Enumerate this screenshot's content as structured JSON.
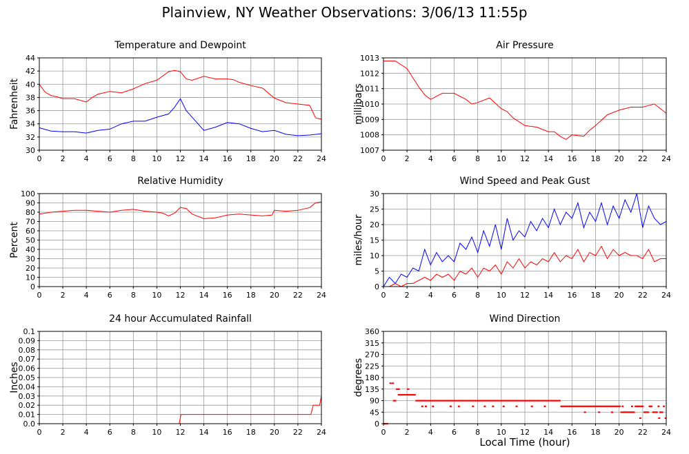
{
  "page": {
    "title": "Plainview, NY Weather Observations: 3/06/13 11:55p",
    "xaxis_caption": "Local Time (hour)"
  },
  "colors": {
    "red": "#ff0000",
    "blue": "#0000ff",
    "grid": "#999999",
    "frame": "#000000"
  },
  "chart_data": [
    {
      "id": "temp",
      "type": "line",
      "title": "Temperature and Dewpoint",
      "ylabel": "Fahrenheit",
      "xlabel": "",
      "xlim": [
        0,
        24
      ],
      "ylim": [
        30,
        44
      ],
      "xticks": [
        0,
        2,
        4,
        6,
        8,
        10,
        12,
        14,
        16,
        18,
        20,
        22,
        24
      ],
      "yticks": [
        30,
        32,
        34,
        36,
        38,
        40,
        42,
        44
      ],
      "grid": true,
      "series": [
        {
          "color": "red",
          "x": [
            0,
            0.5,
            1,
            1.5,
            2,
            3,
            4,
            4.5,
            5,
            6,
            7,
            8,
            9,
            10,
            11,
            11.5,
            12,
            12.5,
            13,
            14,
            15,
            16,
            16.5,
            17,
            18,
            19,
            20,
            21,
            22,
            23,
            23.5,
            24
          ],
          "y": [
            40.0,
            38.8,
            38.3,
            38.1,
            37.8,
            37.8,
            37.3,
            38.0,
            38.5,
            38.9,
            38.7,
            39.3,
            40.1,
            40.6,
            41.9,
            42.1,
            41.9,
            40.8,
            40.6,
            41.2,
            40.8,
            40.8,
            40.7,
            40.3,
            39.8,
            39.4,
            37.9,
            37.2,
            37.0,
            36.8,
            34.9,
            34.7
          ]
        },
        {
          "color": "blue",
          "x": [
            0,
            1,
            2,
            3,
            4,
            5,
            6,
            7,
            8,
            9,
            10,
            11,
            11.5,
            12,
            12.5,
            13,
            14,
            15,
            16,
            16.5,
            17,
            18,
            19,
            20,
            21,
            22,
            23,
            24
          ],
          "y": [
            33.4,
            32.9,
            32.8,
            32.8,
            32.6,
            33.0,
            33.2,
            34.0,
            34.4,
            34.4,
            35.0,
            35.5,
            36.5,
            37.8,
            36.0,
            35.0,
            33.0,
            33.5,
            34.2,
            34.1,
            34.0,
            33.3,
            32.8,
            33.0,
            32.4,
            32.2,
            32.3,
            32.5
          ]
        }
      ]
    },
    {
      "id": "pressure",
      "type": "line",
      "title": "Air Pressure",
      "ylabel": "millibars",
      "xlabel": "",
      "xlim": [
        0,
        24
      ],
      "ylim": [
        1007,
        1013
      ],
      "xticks": [
        0,
        2,
        4,
        6,
        8,
        10,
        12,
        14,
        16,
        18,
        20,
        22,
        24
      ],
      "yticks": [
        1007,
        1008,
        1009,
        1010,
        1011,
        1012,
        1013
      ],
      "grid": true,
      "series": [
        {
          "color": "red",
          "x": [
            0,
            1,
            2,
            2.5,
            3,
            3.5,
            4,
            4.5,
            5,
            6,
            7,
            7.5,
            8,
            9,
            10,
            10.5,
            11,
            12,
            13,
            14,
            14.5,
            15,
            15.5,
            16,
            17,
            17.5,
            18,
            19,
            20,
            21,
            22,
            22.5,
            23,
            24
          ],
          "y": [
            1012.8,
            1012.8,
            1012.3,
            1011.7,
            1011.1,
            1010.6,
            1010.3,
            1010.5,
            1010.7,
            1010.7,
            1010.3,
            1010.0,
            1010.1,
            1010.4,
            1009.7,
            1009.5,
            1009.1,
            1008.6,
            1008.5,
            1008.2,
            1008.2,
            1007.9,
            1007.7,
            1008.0,
            1007.9,
            1008.3,
            1008.6,
            1009.3,
            1009.6,
            1009.8,
            1009.8,
            1009.9,
            1010.0,
            1009.4
          ]
        }
      ]
    },
    {
      "id": "humidity",
      "type": "line",
      "title": "Relative Humidity",
      "ylabel": "Percent",
      "xlabel": "",
      "xlim": [
        0,
        24
      ],
      "ylim": [
        0,
        100
      ],
      "xticks": [
        0,
        2,
        4,
        6,
        8,
        10,
        12,
        14,
        16,
        18,
        20,
        22,
        24
      ],
      "yticks": [
        0,
        10,
        20,
        30,
        40,
        50,
        60,
        70,
        80,
        90,
        100
      ],
      "grid": true,
      "series": [
        {
          "color": "red",
          "x": [
            0,
            1,
            2,
            3,
            4,
            5,
            6,
            7,
            8,
            9,
            10,
            10.5,
            11,
            11.5,
            12,
            12.5,
            13,
            14,
            15,
            16,
            17,
            18,
            19,
            19.8,
            20,
            21,
            22,
            23,
            23.5,
            24
          ],
          "y": [
            78,
            80,
            81,
            82,
            82,
            81,
            80,
            82,
            83,
            81,
            80,
            79,
            76,
            79,
            85,
            84,
            78,
            73,
            74,
            77,
            78,
            77,
            76,
            77,
            82,
            81,
            82,
            85,
            90,
            91
          ]
        }
      ]
    },
    {
      "id": "wind",
      "type": "line",
      "title": "Wind Speed and Peak Gust",
      "ylabel": "miles/hour",
      "xlabel": "",
      "xlim": [
        0,
        24
      ],
      "ylim": [
        0,
        30
      ],
      "xticks": [
        0,
        2,
        4,
        6,
        8,
        10,
        12,
        14,
        16,
        18,
        20,
        22,
        24
      ],
      "yticks": [
        0,
        5,
        10,
        15,
        20,
        25,
        30
      ],
      "grid": true,
      "series": [
        {
          "color": "blue",
          "x": [
            0,
            0.5,
            1,
            1.5,
            2,
            2.5,
            3,
            3.5,
            4,
            4.5,
            5,
            5.5,
            6,
            6.5,
            7,
            7.5,
            8,
            8.5,
            9,
            9.5,
            10,
            10.5,
            11,
            11.5,
            12,
            12.5,
            13,
            13.5,
            14,
            14.5,
            15,
            15.5,
            16,
            16.5,
            17,
            17.5,
            18,
            18.5,
            19,
            19.5,
            20,
            20.5,
            21,
            21.5,
            22,
            22.5,
            23,
            23.5,
            24
          ],
          "y": [
            0,
            3,
            1,
            4,
            3,
            6,
            5,
            12,
            7,
            11,
            8,
            10,
            8,
            14,
            12,
            16,
            11,
            18,
            13,
            20,
            12,
            22,
            15,
            18,
            16,
            21,
            18,
            22,
            19,
            25,
            20,
            24,
            22,
            27,
            19,
            24,
            21,
            27,
            20,
            26,
            22,
            28,
            24,
            30,
            19,
            26,
            22,
            20,
            21
          ]
        },
        {
          "color": "red",
          "x": [
            0,
            0.5,
            1,
            1.5,
            2,
            2.5,
            3,
            3.5,
            4,
            4.5,
            5,
            5.5,
            6,
            6.5,
            7,
            7.5,
            8,
            8.5,
            9,
            9.5,
            10,
            10.5,
            11,
            11.5,
            12,
            12.5,
            13,
            13.5,
            14,
            14.5,
            15,
            15.5,
            16,
            16.5,
            17,
            17.5,
            18,
            18.5,
            19,
            19.5,
            20,
            20.5,
            21,
            21.5,
            22,
            22.5,
            23,
            23.5,
            24
          ],
          "y": [
            0,
            0,
            1,
            0,
            1,
            1,
            2,
            3,
            2,
            4,
            3,
            4,
            2,
            5,
            4,
            6,
            3,
            6,
            5,
            7,
            4,
            8,
            6,
            9,
            6,
            8,
            7,
            9,
            8,
            11,
            8,
            10,
            9,
            12,
            8,
            11,
            10,
            13,
            9,
            12,
            10,
            11,
            10,
            10,
            9,
            12,
            8,
            9,
            9
          ]
        }
      ]
    },
    {
      "id": "rain",
      "type": "line",
      "title": "24 hour Accumulated Rainfall",
      "ylabel": "Inches",
      "xlabel": "",
      "xlim": [
        0,
        24
      ],
      "ylim": [
        0,
        0.1
      ],
      "xticks": [
        0,
        2,
        4,
        6,
        8,
        10,
        12,
        14,
        16,
        18,
        20,
        22,
        24
      ],
      "yticks": [
        0,
        0.01,
        0.02,
        0.03,
        0.04,
        0.05,
        0.06,
        0.07,
        0.08,
        0.09,
        0.1
      ],
      "ytick_labels": [
        "0.0",
        "0.01",
        "0.02",
        "0.03",
        "0.04",
        "0.05",
        "0.06",
        "0.07",
        "0.08",
        "0.09",
        "0.1"
      ],
      "grid": true,
      "series": [
        {
          "color": "red",
          "x": [
            0,
            11.9,
            12.05,
            23.1,
            23.3,
            23.85,
            24
          ],
          "y": [
            0,
            0,
            0.01,
            0.01,
            0.02,
            0.02,
            0.03
          ]
        }
      ]
    },
    {
      "id": "direction",
      "type": "scatter",
      "title": "Wind Direction",
      "ylabel": "degrees",
      "xlabel": "Local Time (hour)",
      "xlim": [
        0,
        24
      ],
      "ylim": [
        0,
        360
      ],
      "xticks": [
        0,
        2,
        4,
        6,
        8,
        10,
        12,
        14,
        16,
        18,
        20,
        22,
        24
      ],
      "yticks": [
        0,
        45,
        90,
        135,
        180,
        225,
        270,
        315,
        360
      ],
      "grid": true,
      "series": [
        {
          "color": "red",
          "x": [
            0.1,
            0.3,
            0.6,
            0.8,
            0.9,
            1.0,
            1.15,
            1.3,
            1.45,
            1.6,
            1.75,
            1.9,
            2.05,
            2.2,
            2.35,
            2.5,
            2.65,
            2.8,
            2.95,
            3.1,
            3.25,
            3.4,
            3.55,
            3.7,
            3.85,
            4.0,
            4.15,
            4.3,
            4.45,
            4.6,
            4.75,
            4.9,
            5.05,
            5.2,
            5.35,
            5.5,
            5.65,
            5.8,
            5.95,
            6.1,
            6.25,
            6.4,
            6.55,
            6.7,
            6.85,
            7.0,
            7.15,
            7.3,
            7.45,
            7.6,
            7.75,
            7.9,
            8.05,
            8.2,
            8.35,
            8.5,
            8.65,
            8.8,
            8.95,
            9.1,
            9.25,
            9.4,
            9.55,
            9.7,
            9.85,
            10.0,
            10.15,
            10.3,
            10.45,
            10.6,
            10.75,
            10.9,
            11.05,
            11.2,
            11.35,
            11.5,
            11.65,
            11.8,
            11.95,
            12.1,
            12.25,
            12.4,
            12.55,
            12.7,
            12.85,
            13.0,
            13.15,
            13.3,
            13.45,
            13.6,
            13.75,
            13.9,
            14.05,
            14.2,
            14.35,
            14.5,
            14.65,
            14.8,
            14.95,
            15.1,
            15.25,
            15.4,
            15.55,
            15.7,
            15.85,
            16.0,
            16.15,
            16.3,
            16.45,
            16.6,
            16.75,
            16.9,
            17.05,
            17.2,
            17.35,
            17.5,
            17.65,
            17.8,
            17.95,
            18.1,
            18.25,
            18.4,
            18.55,
            18.7,
            18.85,
            19.0,
            19.15,
            19.3,
            19.45,
            19.6,
            19.75,
            19.9,
            20.05,
            20.2,
            20.35,
            20.5,
            20.65,
            20.8,
            20.95,
            21.1,
            21.25,
            21.4,
            21.55,
            21.7,
            21.85,
            22.0,
            22.15,
            22.3,
            22.45,
            22.6,
            22.75,
            22.9,
            23.05,
            23.2,
            23.35,
            23.5,
            23.65,
            23.8,
            23.95,
            3.3,
            3.6,
            4.2,
            5.7,
            6.4,
            7.6,
            8.6,
            9.3,
            10.2,
            11.3,
            12.6,
            13.7,
            17.1,
            18.3,
            19.4,
            20.3,
            21.1,
            21.8,
            22.6,
            23.4,
            2.1,
            1.3
          ],
          "y": [
            0,
            0,
            158,
            158,
            90,
            90,
            135,
            113,
            113,
            113,
            113,
            113,
            113,
            113,
            113,
            113,
            113,
            90,
            90,
            90,
            90,
            90,
            90,
            90,
            90,
            90,
            90,
            90,
            90,
            90,
            90,
            90,
            90,
            90,
            90,
            90,
            90,
            90,
            90,
            90,
            90,
            90,
            90,
            90,
            90,
            90,
            90,
            90,
            90,
            90,
            90,
            90,
            90,
            90,
            90,
            90,
            90,
            90,
            90,
            90,
            90,
            90,
            90,
            90,
            90,
            90,
            90,
            90,
            90,
            90,
            90,
            90,
            90,
            90,
            90,
            90,
            90,
            90,
            90,
            90,
            90,
            90,
            90,
            90,
            90,
            90,
            90,
            90,
            90,
            90,
            90,
            90,
            90,
            90,
            90,
            90,
            90,
            90,
            90,
            68,
            68,
            68,
            68,
            68,
            68,
            68,
            68,
            68,
            68,
            68,
            68,
            68,
            68,
            68,
            68,
            68,
            68,
            68,
            68,
            68,
            68,
            68,
            68,
            68,
            68,
            68,
            68,
            68,
            68,
            68,
            68,
            68,
            68,
            45,
            45,
            45,
            45,
            45,
            45,
            45,
            45,
            68,
            68,
            68,
            68,
            68,
            45,
            45,
            45,
            68,
            68,
            45,
            45,
            45,
            68,
            45,
            45,
            68,
            22,
            68,
            68,
            68,
            68,
            68,
            68,
            68,
            68,
            68,
            68,
            68,
            68,
            45,
            45,
            45,
            68,
            68,
            22,
            68,
            22,
            135,
            135
          ]
        }
      ]
    }
  ]
}
